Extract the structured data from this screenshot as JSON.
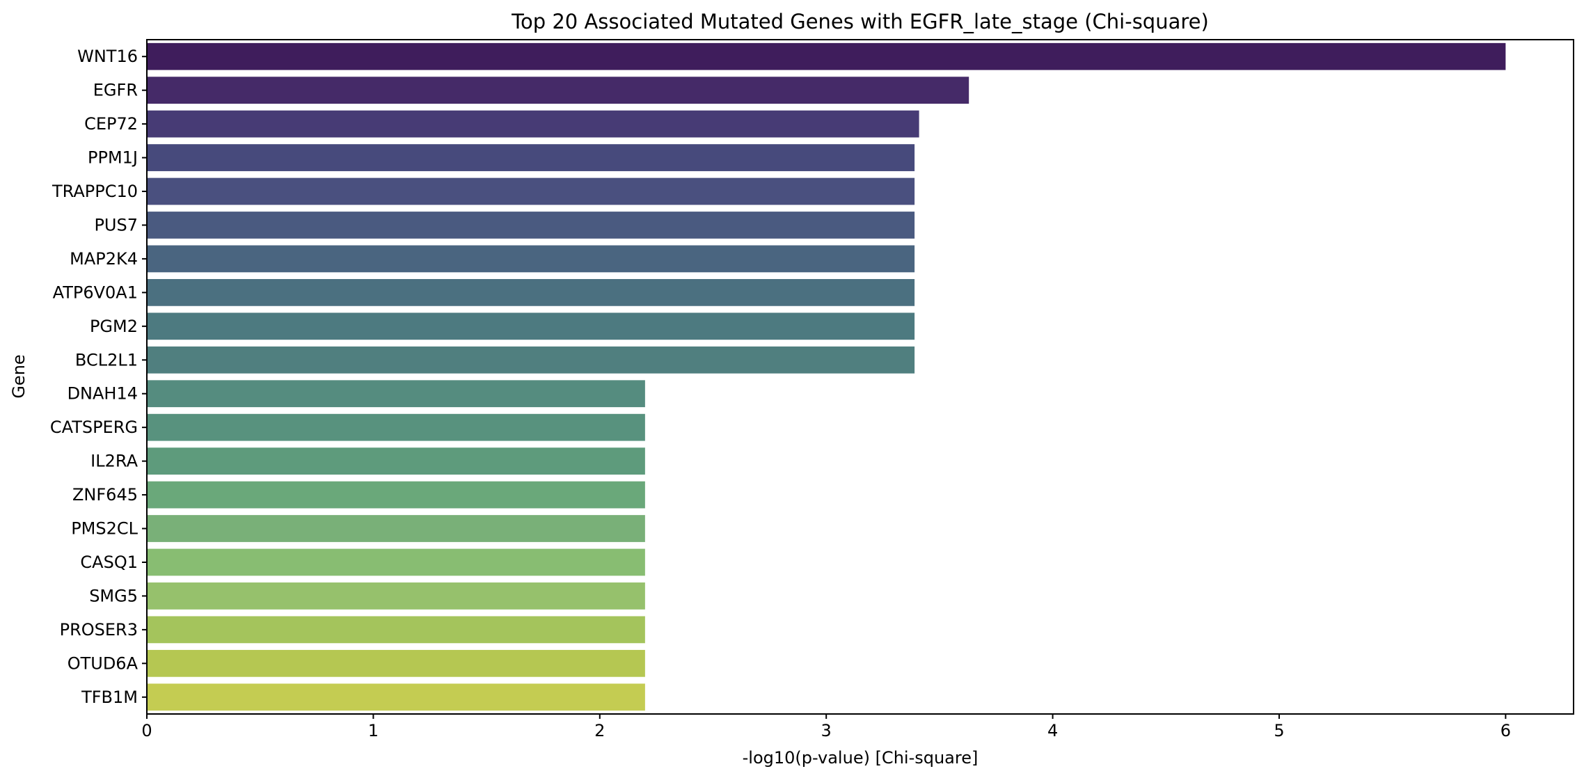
{
  "chart_data": {
    "type": "bar",
    "orientation": "horizontal",
    "title": "Top 20 Associated Mutated Genes with EGFR_late_stage (Chi-square)",
    "xlabel": "-log10(p-value) [Chi-square]",
    "ylabel": "Gene",
    "xlim": [
      0,
      6.3
    ],
    "xticks": [
      0,
      1,
      2,
      3,
      4,
      5,
      6
    ],
    "grid": false,
    "legend": "none",
    "colormap": "viridis",
    "categories": [
      "WNT16",
      "EGFR",
      "CEP72",
      "PPM1J",
      "TRAPPC10",
      "PUS7",
      "MAP2K4",
      "ATP6V0A1",
      "PGM2",
      "BCL2L1",
      "DNAH14",
      "CATSPERG",
      "IL2RA",
      "ZNF645",
      "PMS2CL",
      "CASQ1",
      "SMG5",
      "PROSER3",
      "OTUD6A",
      "TFB1M"
    ],
    "values": [
      6.0,
      3.63,
      3.41,
      3.39,
      3.39,
      3.39,
      3.39,
      3.39,
      3.39,
      3.39,
      2.2,
      2.2,
      2.2,
      2.2,
      2.2,
      2.2,
      2.2,
      2.2,
      2.2,
      2.2
    ],
    "colors": [
      "#3f1d5c",
      "#452a68",
      "#473b75",
      "#474a7c",
      "#4a507f",
      "#4a5a80",
      "#4a6580",
      "#4b7080",
      "#4d7a80",
      "#507f7f",
      "#558c7f",
      "#58927e",
      "#5e9b7c",
      "#6aa87a",
      "#79b078",
      "#88bd72",
      "#96c16c",
      "#a4c45c",
      "#b5c752",
      "#c4cc52"
    ]
  }
}
